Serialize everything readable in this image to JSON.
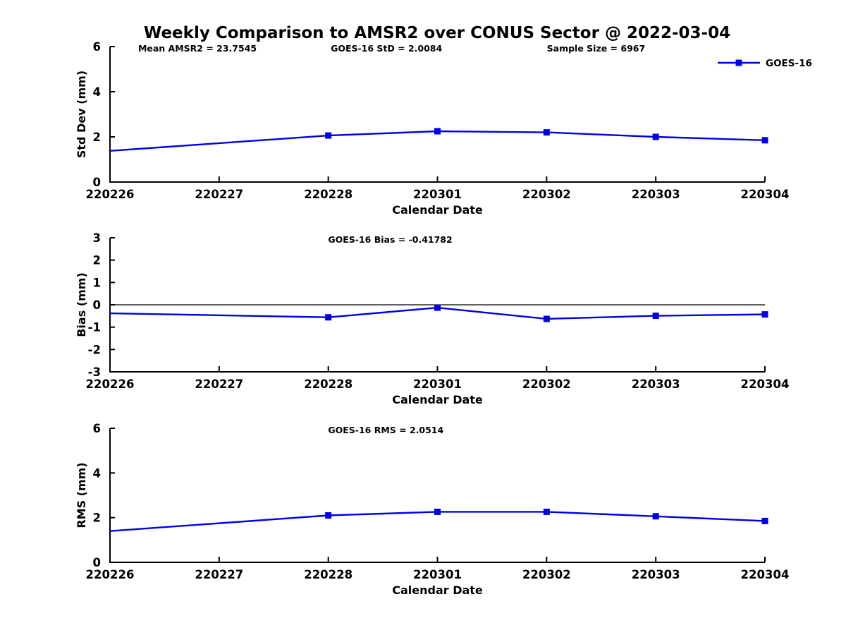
{
  "figure": {
    "title": "Weekly Comparison to AMSR2 over CONUS Sector @ 2022-03-04",
    "legend": {
      "label": "GOES-16"
    },
    "colors": {
      "series": "#0000E6",
      "axis": "#000000",
      "text": "#000000",
      "background": "#FFFFFF",
      "zero_line": "#000000"
    }
  },
  "chart_data": [
    {
      "type": "line",
      "id": "stddev",
      "annotations": [
        "Mean AMSR2 = 23.7545",
        "GOES-16 StD = 2.0084",
        "Sample Size = 6967"
      ],
      "ylabel": "Std Dev (mm)",
      "xlabel": "Calendar Date",
      "ylim": [
        0,
        6
      ],
      "yticks": [
        0,
        2,
        4,
        6
      ],
      "x_categories": [
        "220226",
        "220227",
        "220228",
        "220301",
        "220302",
        "220303",
        "220304"
      ],
      "grid": false,
      "legend_position": "top-right",
      "zero_line": false,
      "series": [
        {
          "name": "GOES-16",
          "points": [
            {
              "x": "220226",
              "y": 1.38,
              "marker": false
            },
            {
              "x": "220228",
              "y": 2.06,
              "marker": true
            },
            {
              "x": "220301",
              "y": 2.25,
              "marker": true
            },
            {
              "x": "220302",
              "y": 2.2,
              "marker": true
            },
            {
              "x": "220303",
              "y": 2.0,
              "marker": true
            },
            {
              "x": "220304",
              "y": 1.85,
              "marker": true
            }
          ]
        }
      ]
    },
    {
      "type": "line",
      "id": "bias",
      "annotations": [
        "GOES-16 Bias  = -0.41782"
      ],
      "ylabel": "Bias (mm)",
      "xlabel": "Calendar Date",
      "ylim": [
        -3,
        3
      ],
      "yticks": [
        -3,
        -2,
        -1,
        0,
        1,
        2,
        3
      ],
      "x_categories": [
        "220226",
        "220227",
        "220228",
        "220301",
        "220302",
        "220303",
        "220304"
      ],
      "grid": false,
      "zero_line": true,
      "series": [
        {
          "name": "GOES-16",
          "points": [
            {
              "x": "220226",
              "y": -0.38,
              "marker": false
            },
            {
              "x": "220228",
              "y": -0.56,
              "marker": true
            },
            {
              "x": "220301",
              "y": -0.13,
              "marker": true
            },
            {
              "x": "220302",
              "y": -0.63,
              "marker": true
            },
            {
              "x": "220303",
              "y": -0.49,
              "marker": true
            },
            {
              "x": "220304",
              "y": -0.43,
              "marker": true
            }
          ]
        }
      ]
    },
    {
      "type": "line",
      "id": "rms",
      "annotations": [
        "GOES-16 RMS = 2.0514"
      ],
      "ylabel": "RMS (mm)",
      "xlabel": "Calendar Date",
      "ylim": [
        0,
        6
      ],
      "yticks": [
        0,
        2,
        4,
        6
      ],
      "x_categories": [
        "220226",
        "220227",
        "220228",
        "220301",
        "220302",
        "220303",
        "220304"
      ],
      "grid": false,
      "zero_line": false,
      "series": [
        {
          "name": "GOES-16",
          "points": [
            {
              "x": "220226",
              "y": 1.4,
              "marker": false
            },
            {
              "x": "220228",
              "y": 2.1,
              "marker": true
            },
            {
              "x": "220301",
              "y": 2.26,
              "marker": true
            },
            {
              "x": "220302",
              "y": 2.26,
              "marker": true
            },
            {
              "x": "220303",
              "y": 2.06,
              "marker": true
            },
            {
              "x": "220304",
              "y": 1.85,
              "marker": true
            }
          ]
        }
      ]
    }
  ]
}
